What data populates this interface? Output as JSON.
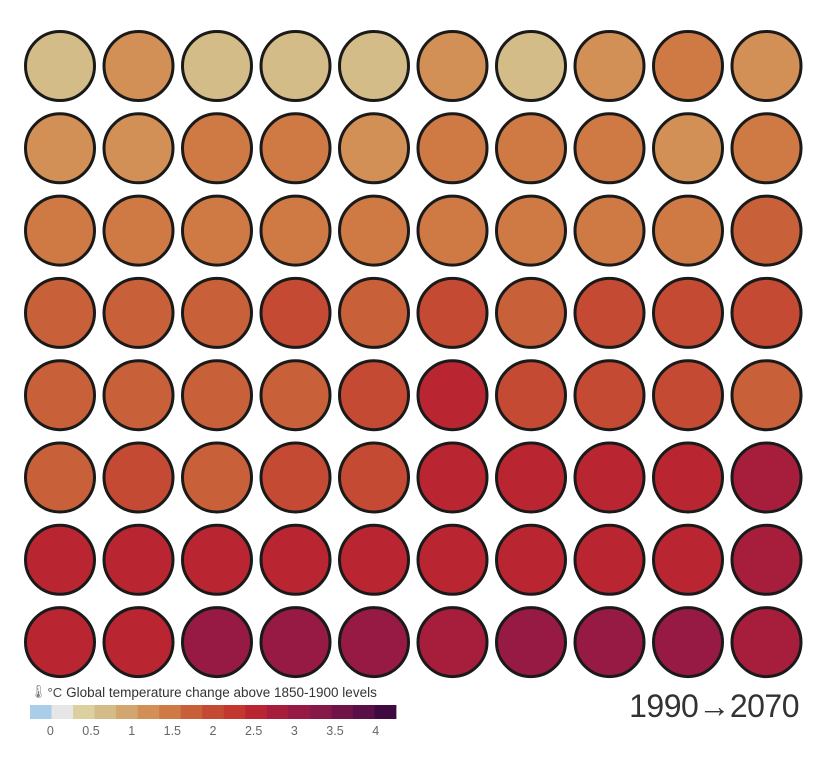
{
  "chart_data": {
    "type": "heatmap",
    "subtype": "circle-grid",
    "rows": 8,
    "cols": 10,
    "period_label": "1990→2070",
    "legend": {
      "unit": "°C",
      "icon": "thermometer-icon",
      "title": "Global temperature change above 1850-1900 levels",
      "ticks": [
        "0",
        "0.5",
        "1",
        "1.5",
        "2",
        "2.5",
        "3",
        "3.5",
        "4"
      ],
      "tick_values": [
        0,
        0.5,
        1,
        1.5,
        2,
        2.5,
        3,
        3.5,
        4
      ],
      "range": [
        -0.25,
        4.25
      ],
      "colors": [
        "#a9cfe8",
        "#e6e6e6",
        "#dccfa0",
        "#d3bc88",
        "#d3a670",
        "#d39056",
        "#cf7a45",
        "#c8613a",
        "#c44a34",
        "#c43630",
        "#b92632",
        "#a71e3c",
        "#961a44",
        "#851948",
        "#701447",
        "#5a0f46",
        "#3e0a40"
      ]
    },
    "values": [
      [
        0.8,
        1.1,
        0.8,
        0.8,
        0.8,
        1.1,
        0.8,
        1.1,
        1.5,
        1.2
      ],
      [
        1.1,
        1.1,
        1.4,
        1.4,
        1.1,
        1.4,
        1.4,
        1.4,
        1.2,
        1.4
      ],
      [
        1.4,
        1.4,
        1.4,
        1.4,
        1.4,
        1.6,
        1.6,
        1.6,
        1.4,
        1.7
      ],
      [
        1.7,
        1.7,
        1.7,
        1.9,
        1.7,
        1.9,
        1.7,
        1.9,
        1.9,
        1.9
      ],
      [
        1.8,
        1.8,
        1.8,
        1.8,
        2.1,
        2.4,
        2.1,
        2.1,
        2.1,
        1.8
      ],
      [
        1.8,
        2.1,
        1.8,
        2.1,
        2.1,
        2.4,
        2.4,
        2.4,
        2.4,
        2.9
      ],
      [
        2.6,
        2.6,
        2.6,
        2.4,
        2.4,
        2.6,
        2.6,
        2.6,
        2.6,
        2.8
      ],
      [
        2.6,
        2.5,
        3.1,
        3.1,
        3.1,
        2.9,
        3.1,
        3.1,
        3.1,
        2.9
      ]
    ]
  }
}
